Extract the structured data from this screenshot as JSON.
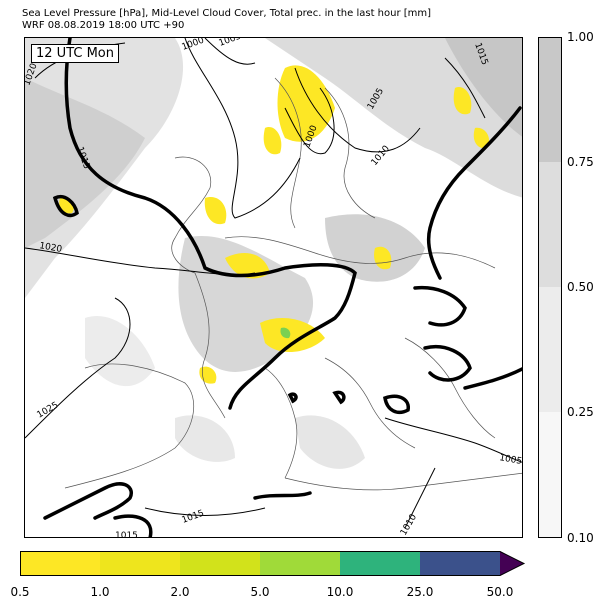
{
  "header": {
    "title_line1": "Sea Level Pressure [hPa], Mid-Level Cloud Cover, Total prec. in the last hour [mm]",
    "title_line2": "WRF 08.08.2019 18:00 UTC +90"
  },
  "map": {
    "time_label": "12 UTC Mon",
    "isobar_labels": [
      "1000",
      "1005",
      "1020",
      "1015",
      "1020",
      "1025",
      "1000",
      "1005",
      "1010",
      "1015",
      "1005",
      "1015",
      "1015",
      "1010"
    ],
    "colors": {
      "cloud_light": "#eeeeee",
      "cloud_mid": "#d9d9d9",
      "cloud_dark": "#c6c6c6",
      "precip_yellow": "#fde725",
      "precip_green": "#7ad151",
      "isobar": "#000000",
      "coast": "#555555"
    }
  },
  "cloud_colorbar": {
    "ticks": [
      "1.00",
      "0.75",
      "0.50",
      "0.25",
      "0.10"
    ],
    "colors": [
      "#c8c8c8",
      "#dddddd",
      "#ececec",
      "#f7f7f7"
    ]
  },
  "precip_colorbar": {
    "ticks": [
      "0.5",
      "1.0",
      "2.0",
      "5.0",
      "10.0",
      "25.0",
      "50.0"
    ],
    "colors": [
      "#fde725",
      "#eee51d",
      "#d2e21b",
      "#a0da39",
      "#2eb37c",
      "#3b518b",
      "#440154"
    ]
  }
}
